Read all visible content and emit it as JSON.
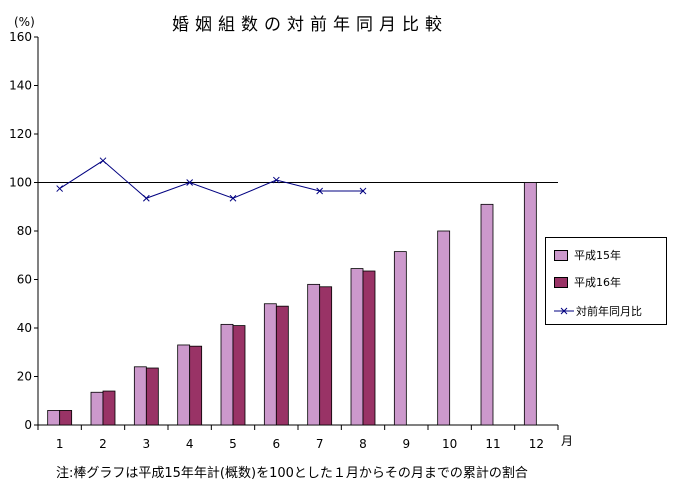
{
  "chart_data": {
    "type": "bar",
    "title": "婚姻組数の対前年同月比較",
    "ylabel": "(%)",
    "xlabel": "月",
    "ylim": [
      0,
      160
    ],
    "y_ticks": [
      "0",
      "20",
      "40",
      "60",
      "80",
      "100",
      "120",
      "140",
      "160"
    ],
    "categories": [
      "1",
      "2",
      "3",
      "4",
      "5",
      "6",
      "7",
      "8",
      "9",
      "10",
      "11",
      "12"
    ],
    "series": [
      {
        "name": "平成15年",
        "type": "bar",
        "color": "#CC99CC",
        "values": [
          6,
          13.5,
          24,
          33,
          41.5,
          50,
          58,
          64.5,
          71.5,
          80,
          91,
          100
        ]
      },
      {
        "name": "平成16年",
        "type": "bar",
        "color": "#993366",
        "values": [
          6,
          14,
          23.5,
          32.5,
          41,
          49,
          57,
          63.5,
          null,
          null,
          null,
          null
        ]
      },
      {
        "name": "対前年同月比",
        "type": "line",
        "color": "#000080",
        "marker": "x",
        "values": [
          97.5,
          109,
          93.5,
          100,
          93.5,
          101,
          96.5,
          96.5,
          null,
          null,
          null,
          null
        ]
      }
    ],
    "reference_line": 100,
    "legend_position": "right",
    "grid": false
  },
  "note": "注:棒グラフは平成15年年計(概数)を100とした１月からその月までの累計の割合"
}
